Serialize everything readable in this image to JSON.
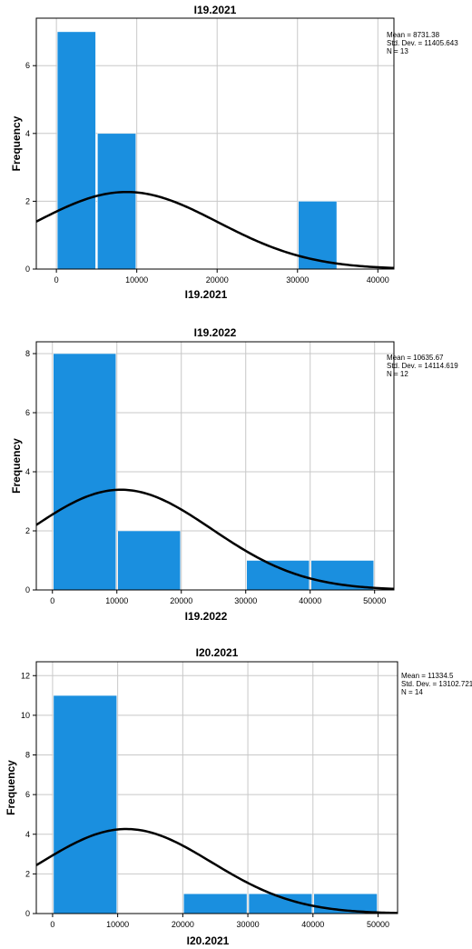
{
  "chart_data": [
    {
      "type": "bar",
      "title": "I19.2021",
      "xlabel": "I19.2021",
      "ylabel": "Frequency",
      "bins": [
        [
          0,
          5000
        ],
        [
          5000,
          10000
        ],
        [
          30000,
          35000
        ]
      ],
      "values": [
        7,
        4,
        2
      ],
      "xlim": [
        -2500,
        42000
      ],
      "ylim": [
        0,
        7.4
      ],
      "xticks": [
        0,
        10000,
        20000,
        30000,
        40000
      ],
      "xtick_labels": [
        "0",
        "10000",
        "20000",
        "30000",
        "40000"
      ],
      "yticks": [
        0,
        2,
        4,
        6
      ],
      "ytick_labels": [
        "0",
        "2",
        "4",
        "6"
      ],
      "grid": true,
      "normal_curve": {
        "mean": 8731.38,
        "sd": 11405.643,
        "n": 13,
        "binwidth": 5000
      },
      "stats": [
        "Mean = 8731.38",
        "Std. Dev. = 11405.643",
        "N = 13"
      ],
      "bar_color": "#1a8fdf",
      "curve_color": "#000000",
      "grid_color": "#c8c8c8"
    },
    {
      "type": "bar",
      "title": "I19.2022",
      "xlabel": "I19.2022",
      "ylabel": "Frequency",
      "bins": [
        [
          0,
          10000
        ],
        [
          10000,
          20000
        ],
        [
          30000,
          40000
        ],
        [
          40000,
          50000
        ]
      ],
      "values": [
        8,
        2,
        1,
        1
      ],
      "xlim": [
        -2500,
        53000
      ],
      "ylim": [
        0,
        8.4
      ],
      "xticks": [
        0,
        10000,
        20000,
        30000,
        40000,
        50000
      ],
      "xtick_labels": [
        "0",
        "10000",
        "20000",
        "30000",
        "40000",
        "50000"
      ],
      "yticks": [
        0,
        2,
        4,
        6,
        8
      ],
      "ytick_labels": [
        "0",
        "2",
        "4",
        "6",
        "8"
      ],
      "grid": true,
      "normal_curve": {
        "mean": 10635.67,
        "sd": 14114.619,
        "n": 12,
        "binwidth": 10000
      },
      "stats": [
        "Mean = 10635.67",
        "Std. Dev. = 14114.619",
        "N = 12"
      ],
      "bar_color": "#1a8fdf",
      "curve_color": "#000000",
      "grid_color": "#c8c8c8"
    },
    {
      "type": "bar",
      "title": "I20.2021",
      "xlabel": "I20.2021",
      "ylabel": "Frequency",
      "bins": [
        [
          0,
          10000
        ],
        [
          20000,
          30000
        ],
        [
          30000,
          40000
        ],
        [
          40000,
          50000
        ]
      ],
      "values": [
        11,
        1,
        1,
        1
      ],
      "xlim": [
        -2500,
        53000
      ],
      "ylim": [
        0,
        12.7
      ],
      "xticks": [
        0,
        10000,
        20000,
        30000,
        40000,
        50000
      ],
      "xtick_labels": [
        "0",
        "10000",
        "20000",
        "30000",
        "40000",
        "50000"
      ],
      "yticks": [
        0,
        2,
        4,
        6,
        8,
        10,
        12
      ],
      "ytick_labels": [
        "0",
        "2",
        "4",
        "6",
        "8",
        "10",
        "12"
      ],
      "grid": true,
      "normal_curve": {
        "mean": 11334.5,
        "sd": 13102.721,
        "n": 14,
        "binwidth": 10000
      },
      "stats": [
        "Mean = 11334.5",
        "Std. Dev. = 13102.721",
        "N = 14"
      ],
      "bar_color": "#1a8fdf",
      "curve_color": "#000000",
      "grid_color": "#c8c8c8"
    }
  ]
}
